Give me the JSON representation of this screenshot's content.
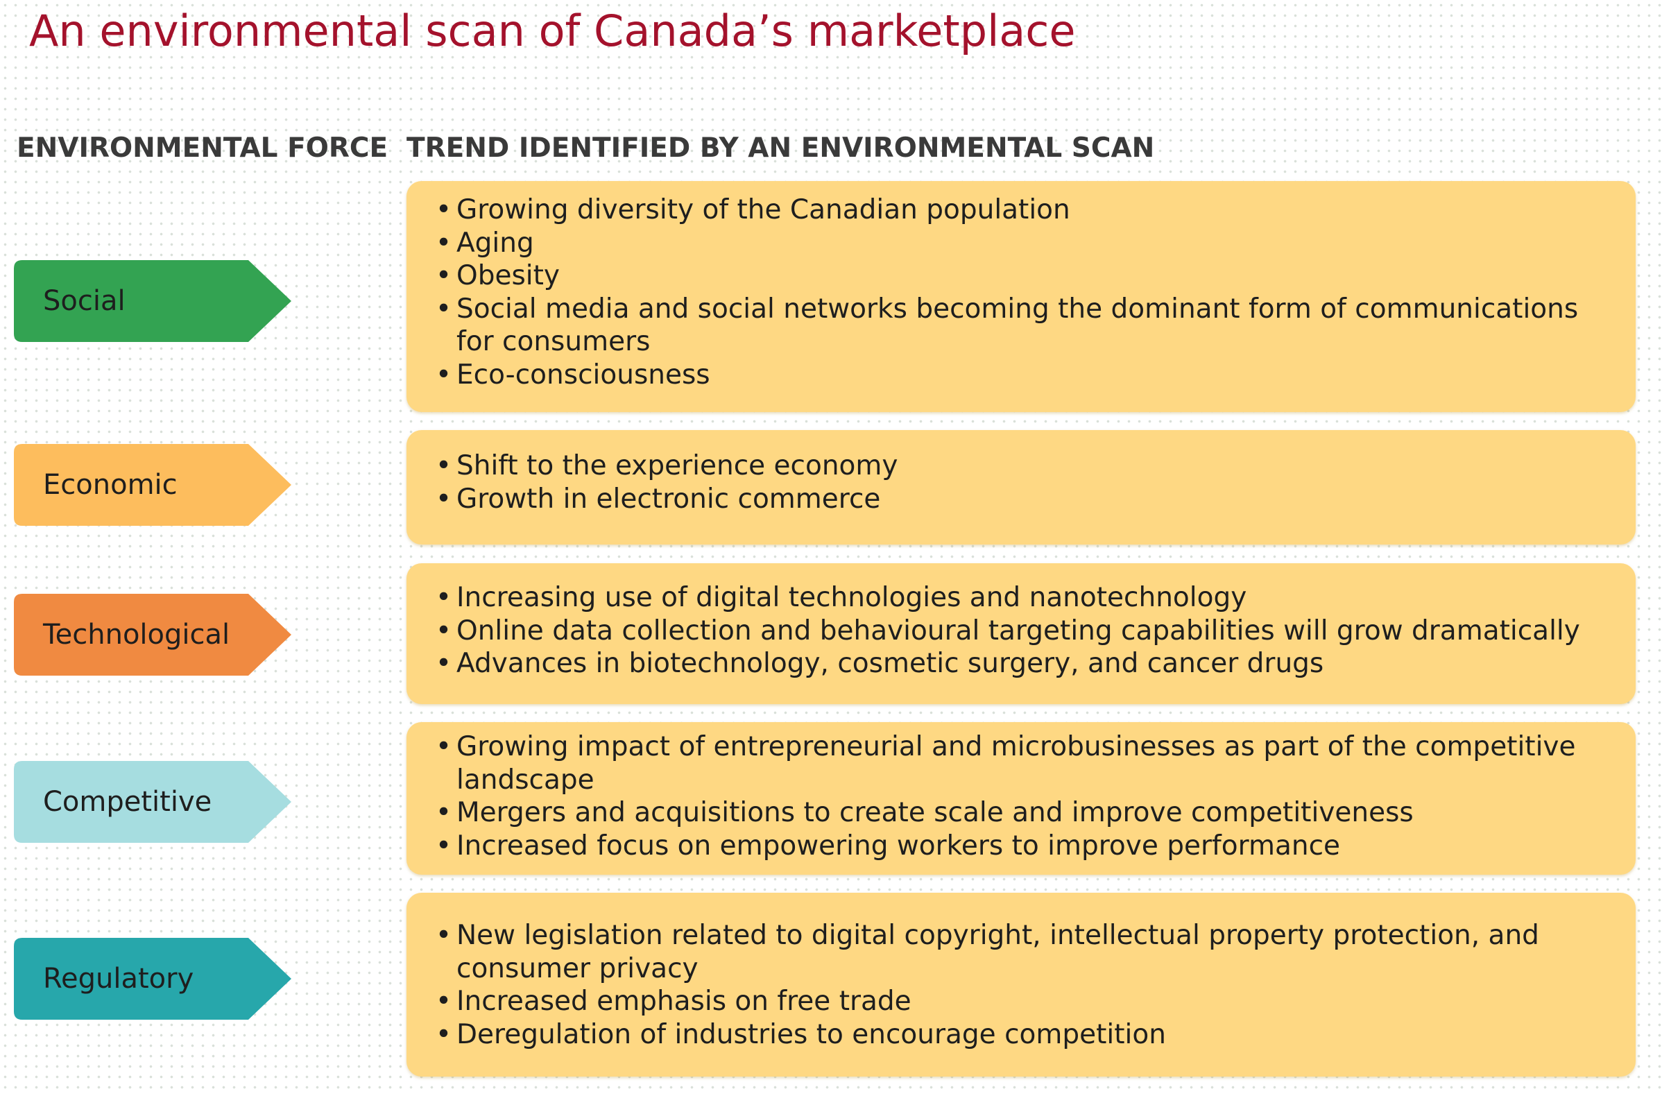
{
  "title": "An environmental scan of Canada’s marketplace",
  "headers": {
    "force": "ENVIRONMENTAL FORCE",
    "trend": "TREND IDENTIFIED BY AN ENVIRONMENTAL SCAN"
  },
  "colors": {
    "title": "#a4122c",
    "trend_box": "#fed883",
    "social": "#33a352",
    "economic": "#fdbd5d",
    "technological": "#f08a41",
    "competitive": "#a6dde0",
    "regulatory": "#27a7ab"
  },
  "rows": [
    {
      "force": "Social",
      "color": "#33a352",
      "trends": [
        "Growing diversity of the Canadian population",
        "Aging",
        "Obesity",
        "Social media and social networks becoming the dominant form of communications for consumers",
        "Eco-consciousness"
      ]
    },
    {
      "force": "Economic",
      "color": "#fdbd5d",
      "trends": [
        "Shift to the experience economy",
        "Growth in electronic commerce"
      ]
    },
    {
      "force": "Technological",
      "color": "#f08a41",
      "trends": [
        "Increasing use of digital technologies and nanotechnology",
        "Online data collection and behavioural targeting capabilities will grow dramatically",
        "Advances in biotechnology, cosmetic surgery, and cancer drugs"
      ]
    },
    {
      "force": "Competitive",
      "color": "#a6dde0",
      "trends": [
        "Growing impact of entrepreneurial and microbusinesses as part of the competitive landscape",
        "Mergers and acquisitions to create scale and improve competitiveness",
        "Increased focus on empowering workers to improve performance"
      ]
    },
    {
      "force": "Regulatory",
      "color": "#27a7ab",
      "trends": [
        "New legislation related to digital copyright, intellectual property protection, and consumer privacy",
        "Increased emphasis on free trade",
        "Deregulation of industries to encourage competition"
      ]
    }
  ]
}
